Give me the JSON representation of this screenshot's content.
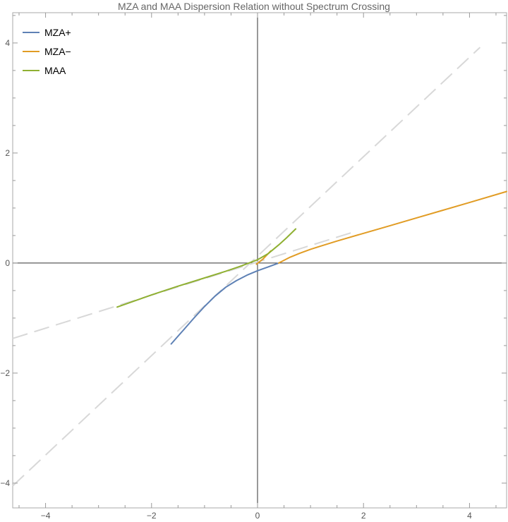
{
  "chart_data": {
    "type": "line",
    "title": "MZA and MAA Dispersion Relation without Spectrum Crossing",
    "xlabel": "",
    "ylabel": "",
    "xlim": [
      -4.62,
      4.7
    ],
    "ylim": [
      -4.45,
      4.55
    ],
    "xticks": [
      -4,
      -2,
      0,
      2,
      4
    ],
    "yticks": [
      -4,
      -2,
      2,
      4
    ],
    "xtick_labels": [
      "−4",
      "−2",
      "0",
      "2",
      "4"
    ],
    "ytick_labels": [
      "−4",
      "−2",
      "2",
      "4"
    ],
    "extra_ytick_label": "0",
    "grid": false,
    "legend_position": "top-left",
    "series": [
      {
        "name": "MZA+",
        "color": "#5e81b5",
        "x": [
          -1.63,
          -1.4,
          -1.2,
          -1.0,
          -0.8,
          -0.6,
          -0.4,
          -0.2,
          0.0,
          0.2,
          0.4
        ],
        "y": [
          -1.47,
          -1.22,
          -1.0,
          -0.79,
          -0.6,
          -0.44,
          -0.32,
          -0.22,
          -0.14,
          -0.07,
          0.0
        ]
      },
      {
        "name": "MZA−",
        "color": "#e19c24",
        "x": [
          0.4,
          0.6,
          0.8,
          1.0,
          1.2,
          1.5,
          2.0,
          2.5,
          3.0,
          3.5,
          4.0,
          4.7
        ],
        "y": [
          0.0,
          0.1,
          0.18,
          0.25,
          0.31,
          0.4,
          0.54,
          0.68,
          0.82,
          0.96,
          1.1,
          1.3
        ]
      },
      {
        "name": "",
        "color": "#e19c24",
        "x": [
          -0.02,
          0.1,
          0.25
        ],
        "y": [
          -0.02,
          0.07,
          0.22
        ]
      },
      {
        "name": "MAA",
        "color": "#8fb032",
        "x": [
          -2.65,
          -2.0,
          -1.5,
          -1.0,
          -0.6,
          -0.3,
          0.0,
          0.2,
          0.4,
          0.55,
          0.72
        ],
        "y": [
          -0.8,
          -0.58,
          -0.42,
          -0.27,
          -0.15,
          -0.05,
          0.06,
          0.17,
          0.33,
          0.46,
          0.62
        ]
      }
    ],
    "reference_lines": [
      {
        "style": "dashed",
        "color": "#d8d8d8",
        "x": [
          -4.62,
          4.2
        ],
        "y": [
          -4.05,
          3.92
        ]
      },
      {
        "style": "dashed",
        "color": "#d8d8d8",
        "x": [
          -4.62,
          1.8
        ],
        "y": [
          -1.37,
          0.56
        ]
      }
    ]
  }
}
